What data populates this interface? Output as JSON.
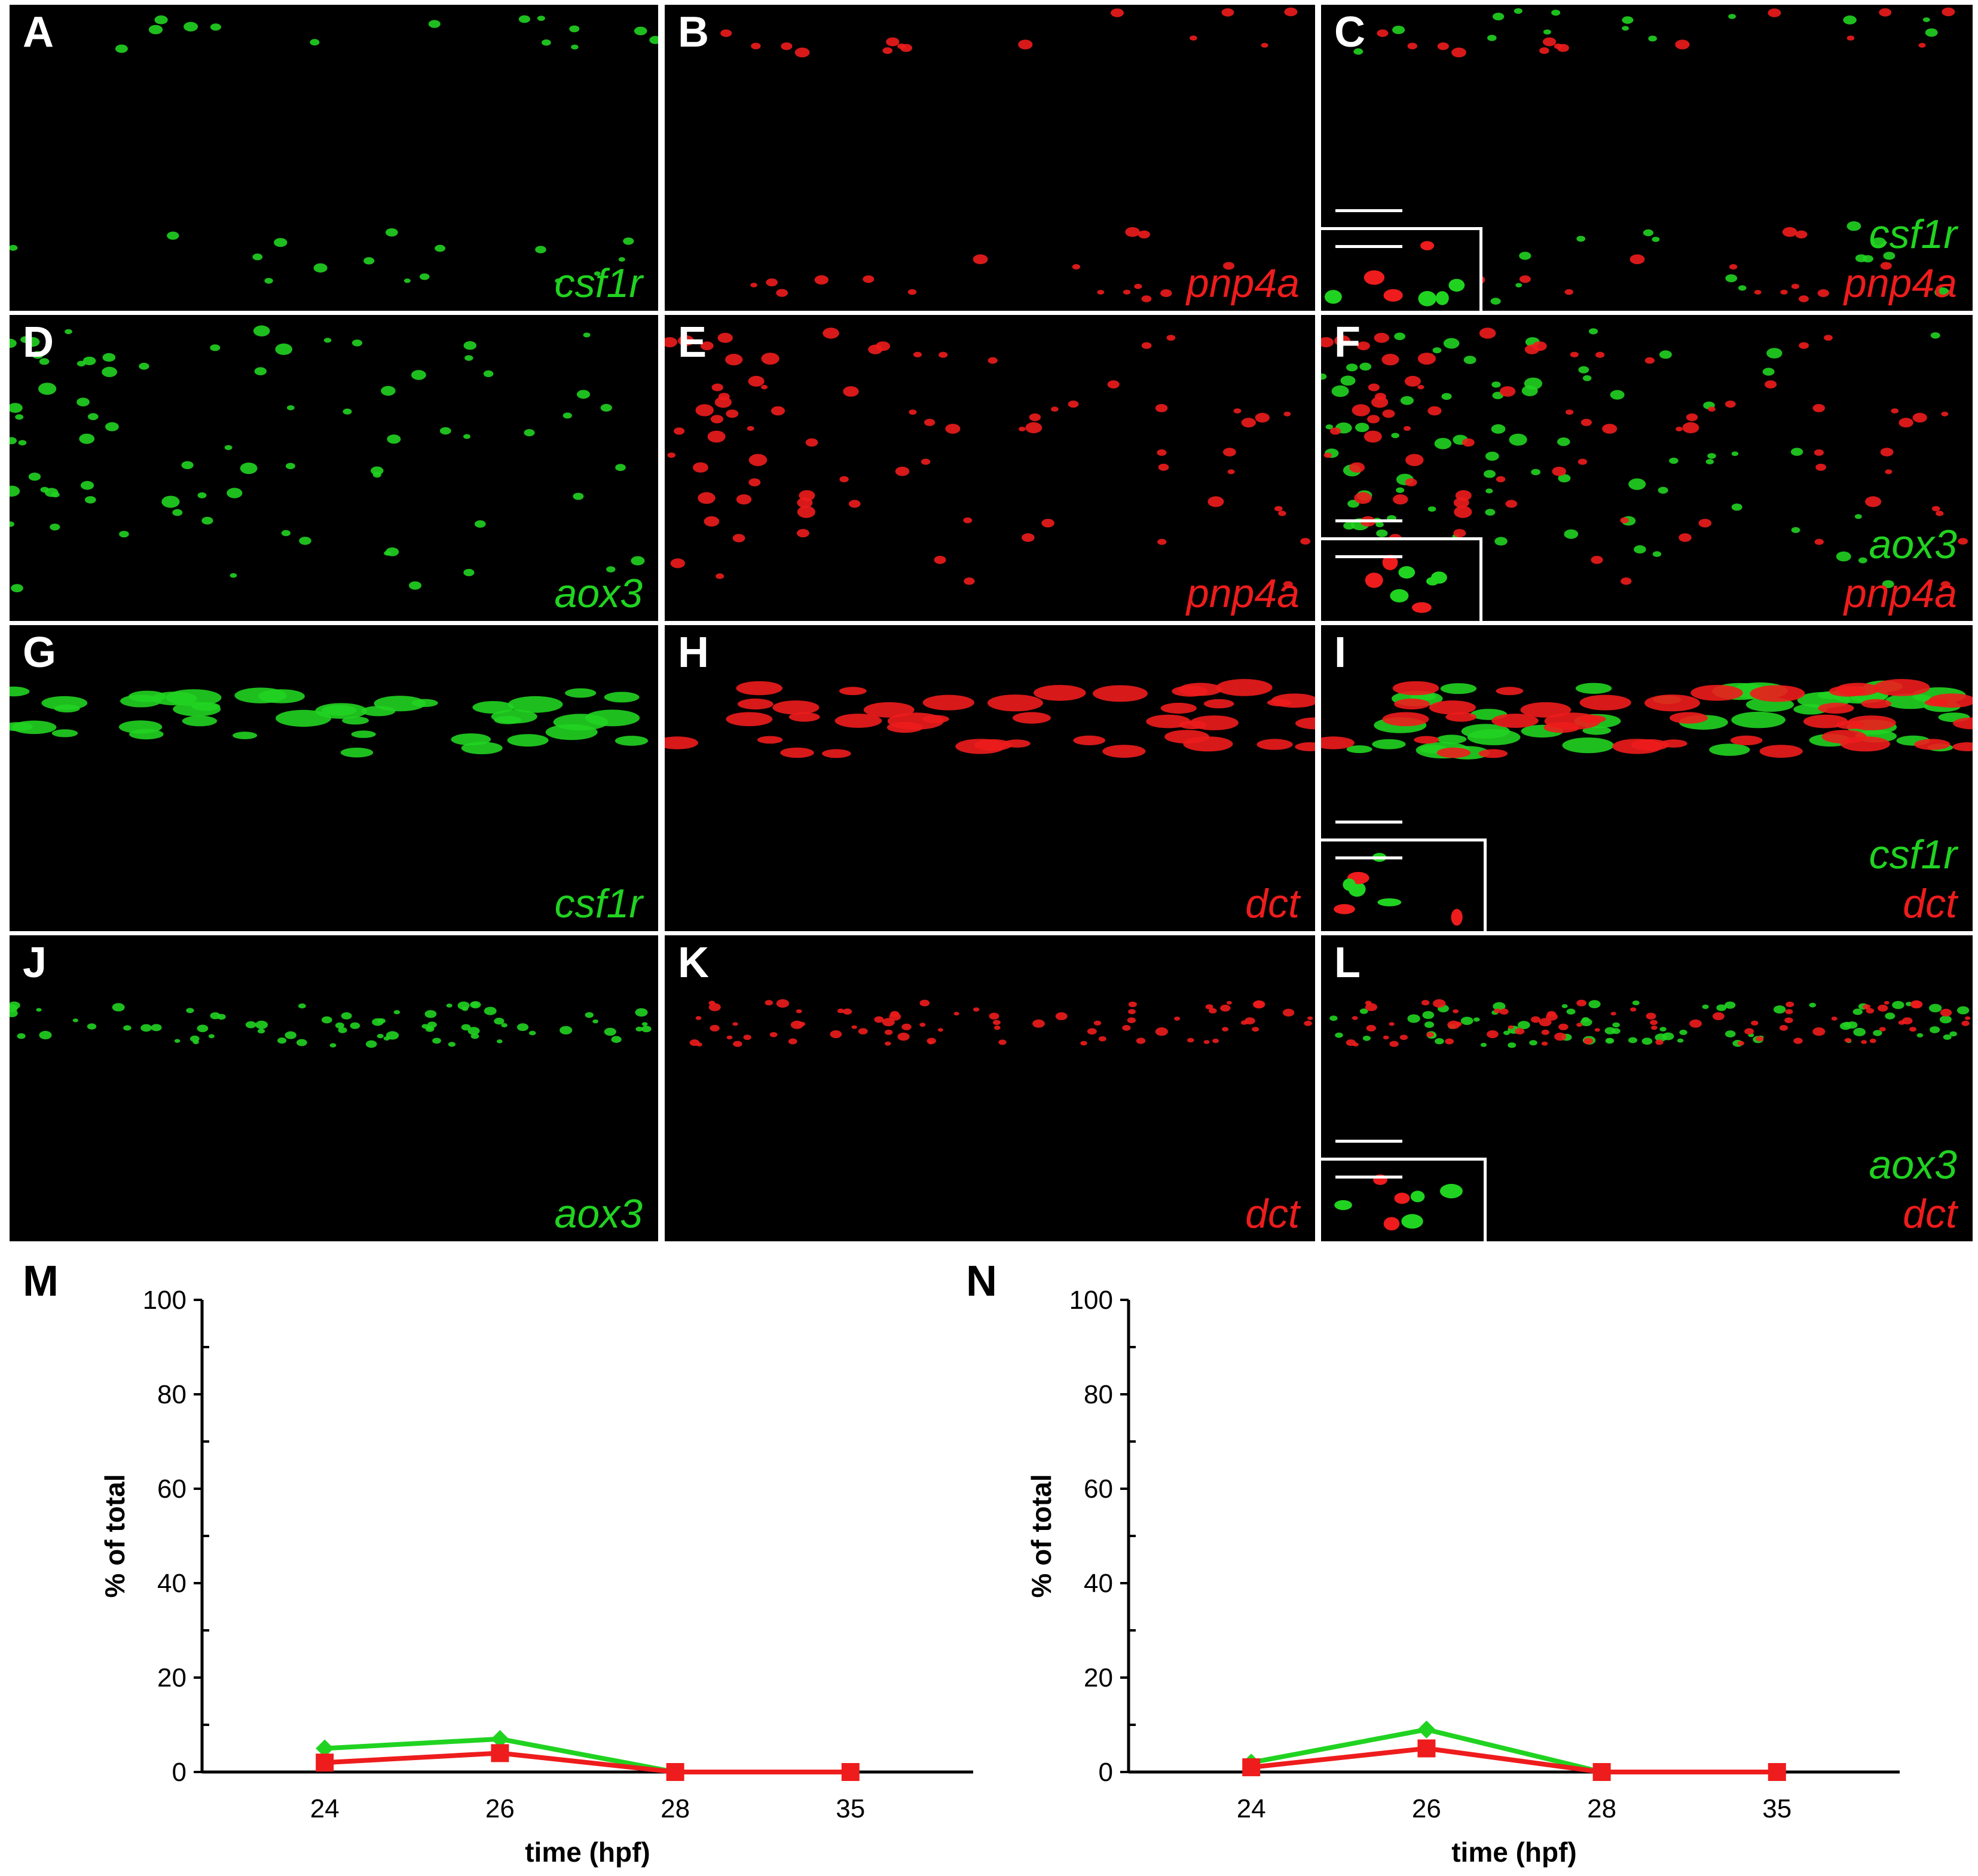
{
  "panels": [
    {
      "id": "A",
      "label": "A",
      "genes": [
        {
          "text": "csf1r",
          "color": "green"
        }
      ],
      "inset": false
    },
    {
      "id": "B",
      "label": "B",
      "genes": [
        {
          "text": "pnp4a",
          "color": "red"
        }
      ],
      "inset": false
    },
    {
      "id": "C",
      "label": "C",
      "genes": [
        {
          "text": "csf1r",
          "color": "green"
        },
        {
          "text": "pnp4a",
          "color": "red"
        }
      ],
      "inset": true
    },
    {
      "id": "D",
      "label": "D",
      "genes": [
        {
          "text": "aox3",
          "color": "green"
        }
      ],
      "inset": false
    },
    {
      "id": "E",
      "label": "E",
      "genes": [
        {
          "text": "pnp4a",
          "color": "red"
        }
      ],
      "inset": false
    },
    {
      "id": "F",
      "label": "F",
      "genes": [
        {
          "text": "aox3",
          "color": "green"
        },
        {
          "text": "pnp4a",
          "color": "red"
        }
      ],
      "inset": true
    },
    {
      "id": "G",
      "label": "G",
      "genes": [
        {
          "text": "csf1r",
          "color": "green"
        }
      ],
      "inset": false
    },
    {
      "id": "H",
      "label": "H",
      "genes": [
        {
          "text": "dct",
          "color": "red"
        }
      ],
      "inset": false
    },
    {
      "id": "I",
      "label": "I",
      "genes": [
        {
          "text": "csf1r",
          "color": "green"
        },
        {
          "text": "dct",
          "color": "red"
        }
      ],
      "inset": true
    },
    {
      "id": "J",
      "label": "J",
      "genes": [
        {
          "text": "aox3",
          "color": "green"
        }
      ],
      "inset": false
    },
    {
      "id": "K",
      "label": "K",
      "genes": [
        {
          "text": "dct",
          "color": "red"
        }
      ],
      "inset": false
    },
    {
      "id": "L",
      "label": "L",
      "genes": [
        {
          "text": "aox3",
          "color": "green"
        },
        {
          "text": "dct",
          "color": "red"
        }
      ],
      "inset": true
    }
  ],
  "colors": {
    "green": "#21d321",
    "red": "#ee1c1c",
    "background": "#000000",
    "axis": "#000000"
  },
  "chart_data": [
    {
      "type": "line",
      "panel_label": "M",
      "categories": [
        "24",
        "26",
        "28",
        "35"
      ],
      "xlabel": "time (hpf)",
      "ylabel": "% of total",
      "ylim": [
        0,
        100
      ],
      "yticks": [
        0,
        20,
        40,
        60,
        80,
        100
      ],
      "series": [
        {
          "color": "#21d321",
          "marker": "diamond",
          "values": [
            5,
            7,
            0,
            0
          ]
        },
        {
          "color": "#ee1c1c",
          "marker": "square",
          "values": [
            2,
            4,
            0,
            0
          ]
        }
      ]
    },
    {
      "type": "line",
      "panel_label": "N",
      "categories": [
        "24",
        "26",
        "28",
        "35"
      ],
      "xlabel": "time (hpf)",
      "ylabel": "% of total",
      "ylim": [
        0,
        100
      ],
      "yticks": [
        0,
        20,
        40,
        60,
        80,
        100
      ],
      "series": [
        {
          "color": "#21d321",
          "marker": "diamond",
          "values": [
            2,
            9,
            0,
            0
          ]
        },
        {
          "color": "#ee1c1c",
          "marker": "square",
          "values": [
            1,
            5,
            0,
            0
          ]
        }
      ]
    }
  ]
}
